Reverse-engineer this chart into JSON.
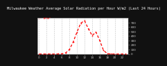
{
  "title": "Milwaukee Weather Average Solar Radiation per Hour W/m2 (Last 24 Hours)",
  "legend_label": "-- W/m²",
  "hours": [
    0,
    1,
    2,
    3,
    4,
    5,
    6,
    7,
    8,
    9,
    10,
    11,
    12,
    13,
    14,
    15,
    16,
    17,
    18,
    19,
    20,
    21,
    22,
    23
  ],
  "values": [
    0,
    0,
    0,
    0,
    0,
    1,
    3,
    25,
    100,
    270,
    490,
    690,
    740,
    560,
    410,
    490,
    300,
    80,
    8,
    1,
    0,
    0,
    0,
    0
  ],
  "line_color": "#ff0000",
  "bg_color": "#111111",
  "plot_bg_color": "#ffffff",
  "grid_color": "#bbbbbb",
  "ylim": [
    0,
    800
  ],
  "yticks": [
    0,
    100,
    200,
    300,
    400,
    500,
    600,
    700
  ],
  "title_fontsize": 3.8,
  "tick_fontsize": 3.0,
  "legend_fontsize": 3.2
}
